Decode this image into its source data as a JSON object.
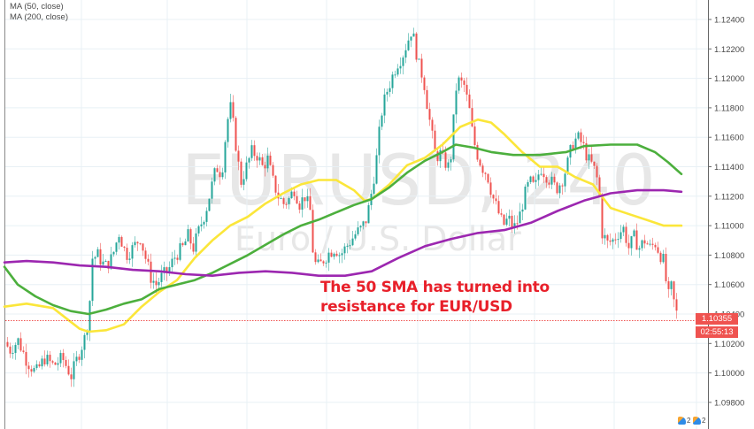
{
  "legend": {
    "items": [
      {
        "label": "MA (50, close)",
        "color": "#fbe63a"
      },
      {
        "label": "MA (200, close)",
        "color": "#4caf3d"
      }
    ]
  },
  "watermark": {
    "symbol": "EURUSD, 240",
    "description": "Euro / U.S. Dollar"
  },
  "annotation": {
    "line1": "The 50 SMA has turned into",
    "line2": "resistance for EUR/USD"
  },
  "price_axis": {
    "labels": [
      "1.12400",
      "1.12200",
      "1.12000",
      "1.11800",
      "1.11600",
      "1.11400",
      "1.11200",
      "1.11000",
      "1.10800",
      "1.10600",
      "1.10400",
      "1.10200",
      "1.10000",
      "1.09800"
    ]
  },
  "last_price": {
    "value": "1.10355",
    "countdown": "02:55:13",
    "color": "#ef5350"
  },
  "footer": {
    "badges": [
      "2",
      "2"
    ]
  },
  "colors": {
    "up": "#26a69a",
    "down": "#ef5350",
    "ma50": "#fbe63a",
    "ma200": "#4caf3d",
    "ma_purple": "#9c27b0",
    "grid": "#e8f0f5",
    "axis_text": "#4a4a4a"
  },
  "chart_data": {
    "type": "candlestick",
    "title": "EURUSD, 240",
    "subtitle": "Euro / U.S. Dollar",
    "xlabel": "",
    "ylabel": "",
    "ylim": [
      1.097,
      1.1253
    ],
    "yticks": [
      1.124,
      1.122,
      1.12,
      1.118,
      1.116,
      1.114,
      1.112,
      1.11,
      1.108,
      1.106,
      1.104,
      1.102,
      1.1,
      1.098
    ],
    "grid": true,
    "legend_position": "top-left",
    "last_price": 1.10355,
    "annotation": "The 50 SMA has turned into resistance for EUR/USD",
    "close_path": [
      [
        0,
        1.103
      ],
      [
        10,
        1.1015
      ],
      [
        20,
        1.1022
      ],
      [
        30,
        1.1008
      ],
      [
        40,
        1.1
      ],
      [
        50,
        1.101
      ],
      [
        60,
        1.1005
      ],
      [
        70,
        1.101
      ],
      [
        80,
        1.0998
      ],
      [
        88,
        1.1012
      ],
      [
        96,
        1.1025
      ],
      [
        100,
        1.104
      ],
      [
        104,
        1.1078
      ],
      [
        110,
        1.108
      ],
      [
        118,
        1.1072
      ],
      [
        126,
        1.1078
      ],
      [
        134,
        1.1095
      ],
      [
        142,
        1.108
      ],
      [
        150,
        1.1085
      ],
      [
        158,
        1.1092
      ],
      [
        164,
        1.1078
      ],
      [
        170,
        1.1065
      ],
      [
        176,
        1.106
      ],
      [
        182,
        1.1065
      ],
      [
        190,
        1.107
      ],
      [
        198,
        1.108
      ],
      [
        206,
        1.1085
      ],
      [
        212,
        1.1093
      ],
      [
        218,
        1.1085
      ],
      [
        226,
        1.11
      ],
      [
        232,
        1.111
      ],
      [
        238,
        1.1125
      ],
      [
        244,
        1.114
      ],
      [
        250,
        1.1135
      ],
      [
        256,
        1.117
      ],
      [
        260,
        1.118
      ],
      [
        264,
        1.1165
      ],
      [
        268,
        1.1145
      ],
      [
        272,
        1.113
      ],
      [
        278,
        1.114
      ],
      [
        284,
        1.115
      ],
      [
        290,
        1.1148
      ],
      [
        296,
        1.114
      ],
      [
        302,
        1.1145
      ],
      [
        308,
        1.113
      ],
      [
        314,
        1.112
      ],
      [
        320,
        1.1115
      ],
      [
        326,
        1.1118
      ],
      [
        332,
        1.1125
      ],
      [
        338,
        1.1115
      ],
      [
        344,
        1.112
      ],
      [
        350,
        1.111
      ],
      [
        354,
        1.1075
      ],
      [
        360,
        1.1072
      ],
      [
        366,
        1.1078
      ],
      [
        372,
        1.1082
      ],
      [
        378,
        1.1085
      ],
      [
        384,
        1.108
      ],
      [
        390,
        1.1085
      ],
      [
        396,
        1.109
      ],
      [
        402,
        1.1095
      ],
      [
        408,
        1.1098
      ],
      [
        414,
        1.1105
      ],
      [
        420,
        1.1125
      ],
      [
        426,
        1.115
      ],
      [
        430,
        1.1175
      ],
      [
        436,
        1.119
      ],
      [
        442,
        1.12
      ],
      [
        448,
        1.121
      ],
      [
        454,
        1.1215
      ],
      [
        460,
        1.1225
      ],
      [
        464,
        1.1232
      ],
      [
        468,
        1.1225
      ],
      [
        472,
        1.121
      ],
      [
        478,
        1.12
      ],
      [
        484,
        1.1175
      ],
      [
        488,
        1.116
      ],
      [
        492,
        1.1145
      ],
      [
        496,
        1.115
      ],
      [
        500,
        1.1145
      ],
      [
        506,
        1.114
      ],
      [
        510,
        1.115
      ],
      [
        514,
        1.1192
      ],
      [
        518,
        1.1198
      ],
      [
        524,
        1.1195
      ],
      [
        530,
        1.1178
      ],
      [
        534,
        1.116
      ],
      [
        538,
        1.115
      ],
      [
        544,
        1.114
      ],
      [
        550,
        1.1135
      ],
      [
        556,
        1.112
      ],
      [
        562,
        1.111
      ],
      [
        568,
        1.11
      ],
      [
        574,
        1.1105
      ],
      [
        580,
        1.1098
      ],
      [
        586,
        1.1105
      ],
      [
        592,
        1.112
      ],
      [
        598,
        1.113
      ],
      [
        604,
        1.1125
      ],
      [
        610,
        1.114
      ],
      [
        616,
        1.1135
      ],
      [
        622,
        1.113
      ],
      [
        628,
        1.1125
      ],
      [
        634,
        1.113
      ],
      [
        640,
        1.114
      ],
      [
        646,
        1.1155
      ],
      [
        652,
        1.116
      ],
      [
        658,
        1.1155
      ],
      [
        664,
        1.1145
      ],
      [
        670,
        1.114
      ],
      [
        676,
        1.1128
      ],
      [
        680,
        1.1095
      ],
      [
        686,
        1.1088
      ],
      [
        692,
        1.109
      ],
      [
        698,
        1.1095
      ],
      [
        704,
        1.1098
      ],
      [
        710,
        1.1085
      ],
      [
        716,
        1.1092
      ],
      [
        722,
        1.1085
      ],
      [
        728,
        1.109
      ],
      [
        734,
        1.1085
      ],
      [
        740,
        1.1088
      ],
      [
        746,
        1.108
      ],
      [
        750,
        1.1075
      ],
      [
        754,
        1.105
      ],
      [
        758,
        1.1058
      ],
      [
        762,
        1.1045
      ],
      [
        766,
        1.1036
      ]
    ],
    "series": [
      {
        "name": "MA (50, close)",
        "color": "#fbe63a",
        "points": [
          [
            5,
            1.1045
          ],
          [
            30,
            1.1047
          ],
          [
            60,
            1.1044
          ],
          [
            90,
            1.103
          ],
          [
            100,
            1.1028
          ],
          [
            120,
            1.1029
          ],
          [
            140,
            1.1033
          ],
          [
            160,
            1.1045
          ],
          [
            180,
            1.1055
          ],
          [
            200,
            1.1063
          ],
          [
            220,
            1.1078
          ],
          [
            240,
            1.109
          ],
          [
            260,
            1.11
          ],
          [
            280,
            1.1106
          ],
          [
            300,
            1.1115
          ],
          [
            320,
            1.1122
          ],
          [
            340,
            1.1128
          ],
          [
            360,
            1.1131
          ],
          [
            380,
            1.1131
          ],
          [
            400,
            1.1124
          ],
          [
            412,
            1.1117
          ],
          [
            420,
            1.1118
          ],
          [
            440,
            1.1128
          ],
          [
            460,
            1.1141
          ],
          [
            480,
            1.1146
          ],
          [
            500,
            1.1155
          ],
          [
            520,
            1.1167
          ],
          [
            540,
            1.1172
          ],
          [
            555,
            1.117
          ],
          [
            570,
            1.1162
          ],
          [
            590,
            1.115
          ],
          [
            610,
            1.114
          ],
          [
            630,
            1.114
          ],
          [
            650,
            1.1133
          ],
          [
            670,
            1.1128
          ],
          [
            690,
            1.1112
          ],
          [
            710,
            1.1108
          ],
          [
            730,
            1.1104
          ],
          [
            750,
            1.11
          ],
          [
            770,
            1.11
          ]
        ]
      },
      {
        "name": "MA (200, close)",
        "color": "#4caf3d",
        "points": [
          [
            5,
            1.1072
          ],
          [
            20,
            1.106
          ],
          [
            40,
            1.1052
          ],
          [
            60,
            1.1046
          ],
          [
            80,
            1.1042
          ],
          [
            100,
            1.104
          ],
          [
            120,
            1.1043
          ],
          [
            140,
            1.1047
          ],
          [
            160,
            1.105
          ],
          [
            180,
            1.1057
          ],
          [
            200,
            1.106
          ],
          [
            220,
            1.1063
          ],
          [
            240,
            1.1068
          ],
          [
            260,
            1.1074
          ],
          [
            280,
            1.108
          ],
          [
            300,
            1.1087
          ],
          [
            320,
            1.1094
          ],
          [
            340,
            1.11
          ],
          [
            360,
            1.1104
          ],
          [
            380,
            1.1109
          ],
          [
            400,
            1.1114
          ],
          [
            420,
            1.1118
          ],
          [
            440,
            1.1126
          ],
          [
            460,
            1.1136
          ],
          [
            480,
            1.1144
          ],
          [
            500,
            1.115
          ],
          [
            515,
            1.1155
          ],
          [
            535,
            1.1153
          ],
          [
            555,
            1.115
          ],
          [
            580,
            1.1148
          ],
          [
            610,
            1.1148
          ],
          [
            640,
            1.115
          ],
          [
            660,
            1.1154
          ],
          [
            690,
            1.1155
          ],
          [
            720,
            1.1155
          ],
          [
            740,
            1.115
          ],
          [
            755,
            1.1143
          ],
          [
            770,
            1.1135
          ]
        ]
      },
      {
        "name": "MA (purple)",
        "color": "#9c27b0",
        "points": [
          [
            5,
            1.1075
          ],
          [
            30,
            1.1076
          ],
          [
            60,
            1.1075
          ],
          [
            90,
            1.1073
          ],
          [
            120,
            1.1072
          ],
          [
            150,
            1.107
          ],
          [
            180,
            1.1069
          ],
          [
            210,
            1.1067
          ],
          [
            240,
            1.1066
          ],
          [
            270,
            1.1068
          ],
          [
            300,
            1.1069
          ],
          [
            330,
            1.1068
          ],
          [
            360,
            1.1066
          ],
          [
            390,
            1.1066
          ],
          [
            420,
            1.1069
          ],
          [
            450,
            1.1078
          ],
          [
            480,
            1.1086
          ],
          [
            510,
            1.1091
          ],
          [
            540,
            1.1095
          ],
          [
            570,
            1.1097
          ],
          [
            600,
            1.1102
          ],
          [
            630,
            1.111
          ],
          [
            660,
            1.1117
          ],
          [
            690,
            1.1122
          ],
          [
            720,
            1.1124
          ],
          [
            750,
            1.1124
          ],
          [
            770,
            1.1123
          ]
        ]
      }
    ]
  }
}
